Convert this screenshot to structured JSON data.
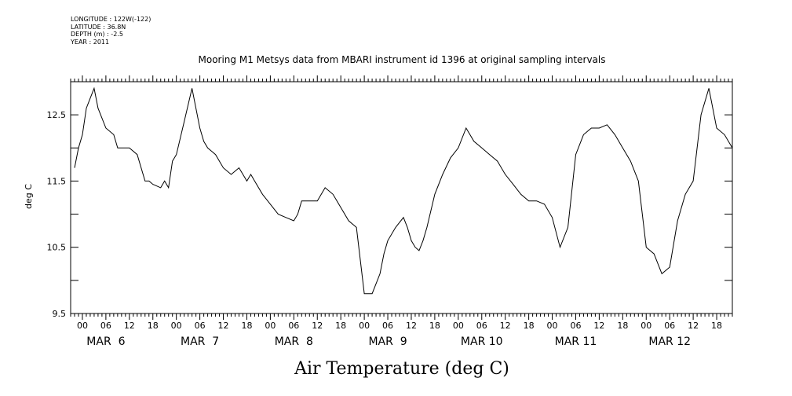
{
  "header": {
    "longitude": "LONGITUDE : 122W(-122)",
    "latitude": "LATITUDE : 36.8N",
    "depth": "DEPTH (m) : -2.5",
    "year": "YEAR : 2011"
  },
  "chart_data": {
    "type": "line",
    "title": "Mooring M1 Metsys data from MBARI instrument id 1396 at original sampling intervals",
    "xlabel": "Air Temperature (deg C)",
    "ylabel": "deg C",
    "ylim": [
      9.5,
      13.0
    ],
    "xlim_hours": [
      -3,
      166
    ],
    "y_ticks": [
      9.5,
      10.5,
      11.5,
      12.5
    ],
    "hour_ticks": [
      "00",
      "06",
      "12",
      "18",
      "00",
      "06",
      "12",
      "18",
      "00",
      "06",
      "12",
      "18",
      "00",
      "06",
      "12",
      "18",
      "00",
      "06",
      "12",
      "18",
      "00",
      "06",
      "12",
      "18",
      "00",
      "06",
      "12",
      "18"
    ],
    "date_labels": [
      "MAR  6",
      "MAR  7",
      "MAR  8",
      "MAR  9",
      "MAR 10",
      "MAR 11",
      "MAR 12"
    ],
    "series": [
      {
        "x": [
          -2,
          -1,
          0,
          1,
          2,
          3,
          4,
          6,
          8,
          9,
          10,
          12,
          14,
          16,
          17,
          18,
          20,
          21,
          22,
          23,
          24,
          26,
          28,
          30,
          31,
          32,
          33,
          34,
          36,
          38,
          40,
          41,
          42,
          43,
          44,
          46,
          48,
          50,
          52,
          54,
          55,
          56,
          58,
          60,
          62,
          64,
          66,
          68,
          70,
          72,
          74,
          76,
          77,
          78,
          80,
          82,
          83,
          84,
          85,
          86,
          87,
          88,
          90,
          92,
          94,
          96,
          98,
          100,
          102,
          104,
          106,
          108,
          110,
          112,
          114,
          116,
          118,
          120,
          122,
          124,
          126,
          128,
          130,
          132,
          134,
          136,
          138,
          140,
          142,
          144,
          146,
          148,
          150,
          152,
          154,
          156,
          158,
          160,
          162,
          164,
          166
        ],
        "y": [
          11.7,
          12.0,
          12.2,
          12.6,
          12.75,
          12.9,
          12.6,
          12.3,
          12.2,
          12.0,
          12.0,
          12.0,
          11.9,
          11.5,
          11.5,
          11.45,
          11.4,
          11.5,
          11.4,
          11.8,
          11.9,
          12.4,
          12.9,
          12.3,
          12.1,
          12.0,
          11.95,
          11.9,
          11.7,
          11.6,
          11.7,
          11.6,
          11.5,
          11.6,
          11.5,
          11.3,
          11.15,
          11.0,
          10.95,
          10.9,
          11.0,
          11.2,
          11.2,
          11.2,
          11.4,
          11.3,
          11.1,
          10.9,
          10.8,
          9.8,
          9.8,
          10.1,
          10.4,
          10.6,
          10.8,
          10.95,
          10.8,
          10.6,
          10.5,
          10.45,
          10.6,
          10.8,
          11.3,
          11.6,
          11.85,
          12.0,
          12.3,
          12.1,
          12.0,
          11.9,
          11.8,
          11.6,
          11.45,
          11.3,
          11.2,
          11.2,
          11.15,
          10.95,
          10.5,
          10.8,
          11.9,
          12.2,
          12.3,
          12.3,
          12.35,
          12.2,
          12.0,
          11.8,
          11.5,
          10.5,
          10.4,
          10.1,
          10.2,
          10.9,
          11.3,
          11.5,
          12.5,
          12.9,
          12.3,
          12.2,
          12.0
        ]
      }
    ]
  }
}
